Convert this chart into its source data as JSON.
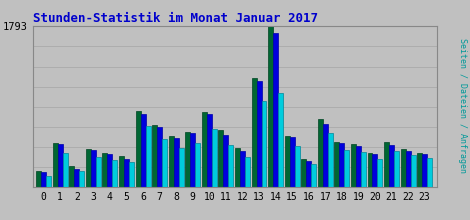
{
  "title": "Stunden-Statistik im Monat Januar 2017",
  "title_color": "#0000cc",
  "background_color": "#c0c0c0",
  "ymax": 1793,
  "hours": [
    0,
    1,
    2,
    3,
    4,
    5,
    6,
    7,
    8,
    9,
    10,
    11,
    12,
    13,
    14,
    15,
    16,
    17,
    18,
    19,
    20,
    21,
    22,
    23
  ],
  "seiten": [
    175,
    490,
    235,
    425,
    385,
    345,
    850,
    695,
    565,
    615,
    835,
    635,
    430,
    1215,
    1793,
    570,
    310,
    760,
    505,
    480,
    378,
    497,
    420,
    378
  ],
  "dateien": [
    170,
    480,
    197,
    413,
    370,
    318,
    820,
    675,
    548,
    598,
    810,
    578,
    400,
    1185,
    1720,
    560,
    290,
    703,
    492,
    462,
    370,
    472,
    402,
    370
  ],
  "anfragen": [
    128,
    378,
    178,
    330,
    300,
    278,
    685,
    540,
    440,
    490,
    650,
    472,
    338,
    962,
    1050,
    460,
    260,
    598,
    412,
    390,
    310,
    400,
    358,
    328
  ],
  "color_seiten": "#006633",
  "color_dateien": "#0000dd",
  "color_anfragen": "#00ccdd",
  "bar_width": 0.3,
  "grid_color": "#aaaaaa",
  "n_gridlines": 8,
  "right_label": "Seiten / Dateien / Anfragen",
  "right_label_seiten_color": "#0000cc",
  "right_label_dateien_color": "#0000cc",
  "right_label_anfragen_color": "#009999"
}
